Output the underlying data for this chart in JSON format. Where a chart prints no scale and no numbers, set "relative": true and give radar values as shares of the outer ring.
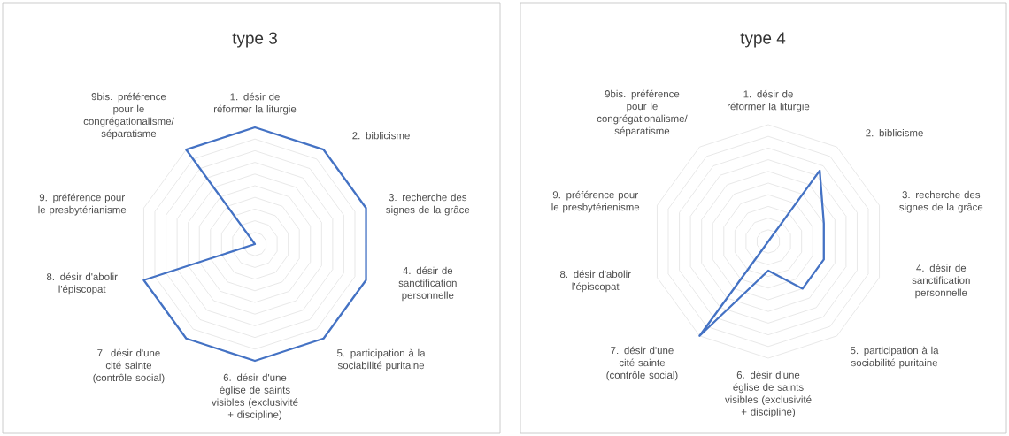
{
  "chart_data": [
    {
      "type": "radar",
      "title": "type 3",
      "relative": true,
      "grid": true,
      "categories": [
        "1. désir de réformer la liturgie",
        "2. biblicisme",
        "3. recherche des signes de la grâce",
        "4. désir de sanctification personnelle",
        "5. participation à la sociabilité puritaine",
        "6. désir d'une église de saints visibles (exclusivité + discipline)",
        "7. désir d'une cité sainte (contrôle social)",
        "8. désir d'abolir l'épiscopat",
        "9. préférence pour le presbytérianisme",
        "9bis. préférence pour le congrégationalisme/ séparatisme"
      ],
      "series": [
        {
          "color": "#4472c4",
          "values": [
            1,
            1,
            1,
            1,
            1,
            1,
            1,
            1,
            0,
            1
          ]
        }
      ]
    },
    {
      "type": "radar",
      "title": "type 4",
      "relative": true,
      "grid": true,
      "categories": [
        "1. désir de réformer la liturgie",
        "2. biblicisme",
        "3. recherche des signes de la grâce",
        "4. désir de sanctification personnelle",
        "5. participation à la sociabilité puritaine",
        "6. désir d'une église de saints visibles (exclusivité + discipline)",
        "7. désir d'une cité sainte (contrôle social)",
        "8. désir d'abolir l'épiscopat",
        "9. préférence pour le presbytérienisme",
        "9bis. préférence pour le congrégationalisme/ séparatisme"
      ],
      "series": [
        {
          "color": "#4472c4",
          "values": [
            0,
            0.75,
            0.5,
            0.5,
            0.5,
            0.25,
            1,
            0,
            0,
            0
          ]
        }
      ]
    }
  ]
}
